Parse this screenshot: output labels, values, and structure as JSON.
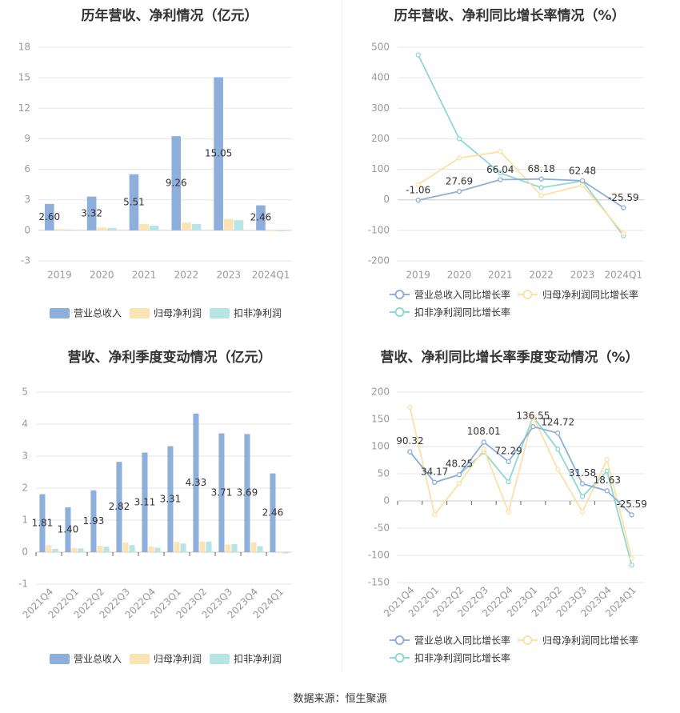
{
  "source": "数据来源：恒生聚源",
  "colors": {
    "revenue": "#8eaedb",
    "net": "#fce3b4",
    "deducted": "#b7e5e5",
    "rev_line": "#8eaedb",
    "net_line": "#fde0a5",
    "ded_line": "#8fd8d4"
  },
  "chart_data": [
    {
      "id": "annual-amount",
      "type": "bar",
      "title": "历年营收、净利情况（亿元）",
      "categories": [
        "2019",
        "2020",
        "2021",
        "2022",
        "2023",
        "2024Q1"
      ],
      "yticks": [
        "18",
        "15",
        "12",
        "9",
        "6",
        "3",
        "0",
        "-3"
      ],
      "ylim": [
        -3,
        18
      ],
      "series": [
        {
          "name": "营业总收入",
          "values": [
            2.6,
            3.32,
            5.51,
            9.26,
            15.05,
            2.46
          ],
          "labels": [
            "2.60",
            "3.32",
            "5.51",
            "9.26",
            "15.05",
            "2.46"
          ]
        },
        {
          "name": "归母净利润",
          "values": [
            0.12,
            0.28,
            0.62,
            0.76,
            1.12,
            -0.05
          ]
        },
        {
          "name": "扣非净利润",
          "values": [
            0.08,
            0.22,
            0.45,
            0.62,
            1.0,
            -0.08
          ]
        }
      ],
      "legend": "bottom"
    },
    {
      "id": "annual-growth",
      "type": "line",
      "title": "历年营收、净利同比增长率情况（%）",
      "categories": [
        "2019",
        "2020",
        "2021",
        "2022",
        "2023",
        "2024Q1"
      ],
      "yticks": [
        "500",
        "400",
        "300",
        "200",
        "100",
        "0",
        "-100",
        "-200"
      ],
      "ylim": [
        -200,
        500
      ],
      "series": [
        {
          "name": "营业总收入同比增长率",
          "values": [
            -1.06,
            27.69,
            66.04,
            68.18,
            62.48,
            -25.59
          ],
          "labels": [
            "-1.06",
            "27.69",
            "66.04",
            "68.18",
            "62.48",
            "-25.59"
          ]
        },
        {
          "name": "归母净利润同比增长率",
          "values": [
            50,
            137,
            158,
            14,
            48,
            -110
          ]
        },
        {
          "name": "扣非净利润同比增长率",
          "values": [
            475,
            200,
            88,
            40,
            62,
            -118
          ]
        }
      ],
      "legend": "bottom"
    },
    {
      "id": "quarter-amount",
      "type": "bar",
      "title": "营收、净利季度变动情况（亿元）",
      "categories": [
        "2021Q4",
        "2022Q1",
        "2022Q2",
        "2022Q3",
        "2022Q4",
        "2023Q1",
        "2023Q2",
        "2023Q3",
        "2023Q4",
        "2024Q1"
      ],
      "yticks": [
        "5",
        "4",
        "3",
        "2",
        "1",
        "0",
        "-1"
      ],
      "ylim": [
        -1,
        5
      ],
      "series": [
        {
          "name": "营业总收入",
          "values": [
            1.81,
            1.4,
            1.93,
            2.82,
            3.11,
            3.31,
            4.33,
            3.71,
            3.69,
            2.46
          ],
          "labels": [
            "1.81",
            "1.40",
            "1.93",
            "2.82",
            "3.11",
            "3.31",
            "4.33",
            "3.71",
            "3.69",
            "2.46"
          ]
        },
        {
          "name": "归母净利润",
          "values": [
            0.22,
            0.13,
            0.2,
            0.3,
            0.18,
            0.32,
            0.33,
            0.24,
            0.31,
            -0.03
          ]
        },
        {
          "name": "扣非净利润",
          "values": [
            0.1,
            0.12,
            0.17,
            0.22,
            0.14,
            0.27,
            0.33,
            0.25,
            0.19,
            -0.04
          ]
        }
      ],
      "legend": "bottom"
    },
    {
      "id": "quarter-growth",
      "type": "line",
      "title": "营收、净利同比增长率季度变动情况（%）",
      "categories": [
        "2021Q4",
        "2022Q1",
        "2022Q2",
        "2022Q3",
        "2022Q4",
        "2023Q1",
        "2023Q2",
        "2023Q3",
        "2023Q4",
        "2024Q1"
      ],
      "yticks": [
        "200",
        "150",
        "100",
        "50",
        "0",
        "-50",
        "-100",
        "-150"
      ],
      "ylim": [
        -150,
        200
      ],
      "series": [
        {
          "name": "营业总收入同比增长率",
          "values": [
            90.32,
            34.17,
            48.25,
            108.01,
            72.29,
            136.55,
            124.72,
            31.58,
            18.63,
            -25.59
          ],
          "labels": [
            "90.32",
            "34.17",
            "48.25",
            "108.01",
            "72.29",
            "136.55",
            "124.72",
            "31.58",
            "18.63",
            "-25.59"
          ]
        },
        {
          "name": "归母净利润同比增长率",
          "values": [
            172,
            -25,
            32,
            95,
            -20,
            155,
            58,
            -20,
            76,
            -105
          ]
        },
        {
          "name": "扣非净利润同比增长率",
          "values": [
            90,
            34,
            48,
            90,
            35,
            155,
            95,
            8,
            55,
            -118
          ]
        }
      ],
      "legend": "bottom"
    }
  ]
}
